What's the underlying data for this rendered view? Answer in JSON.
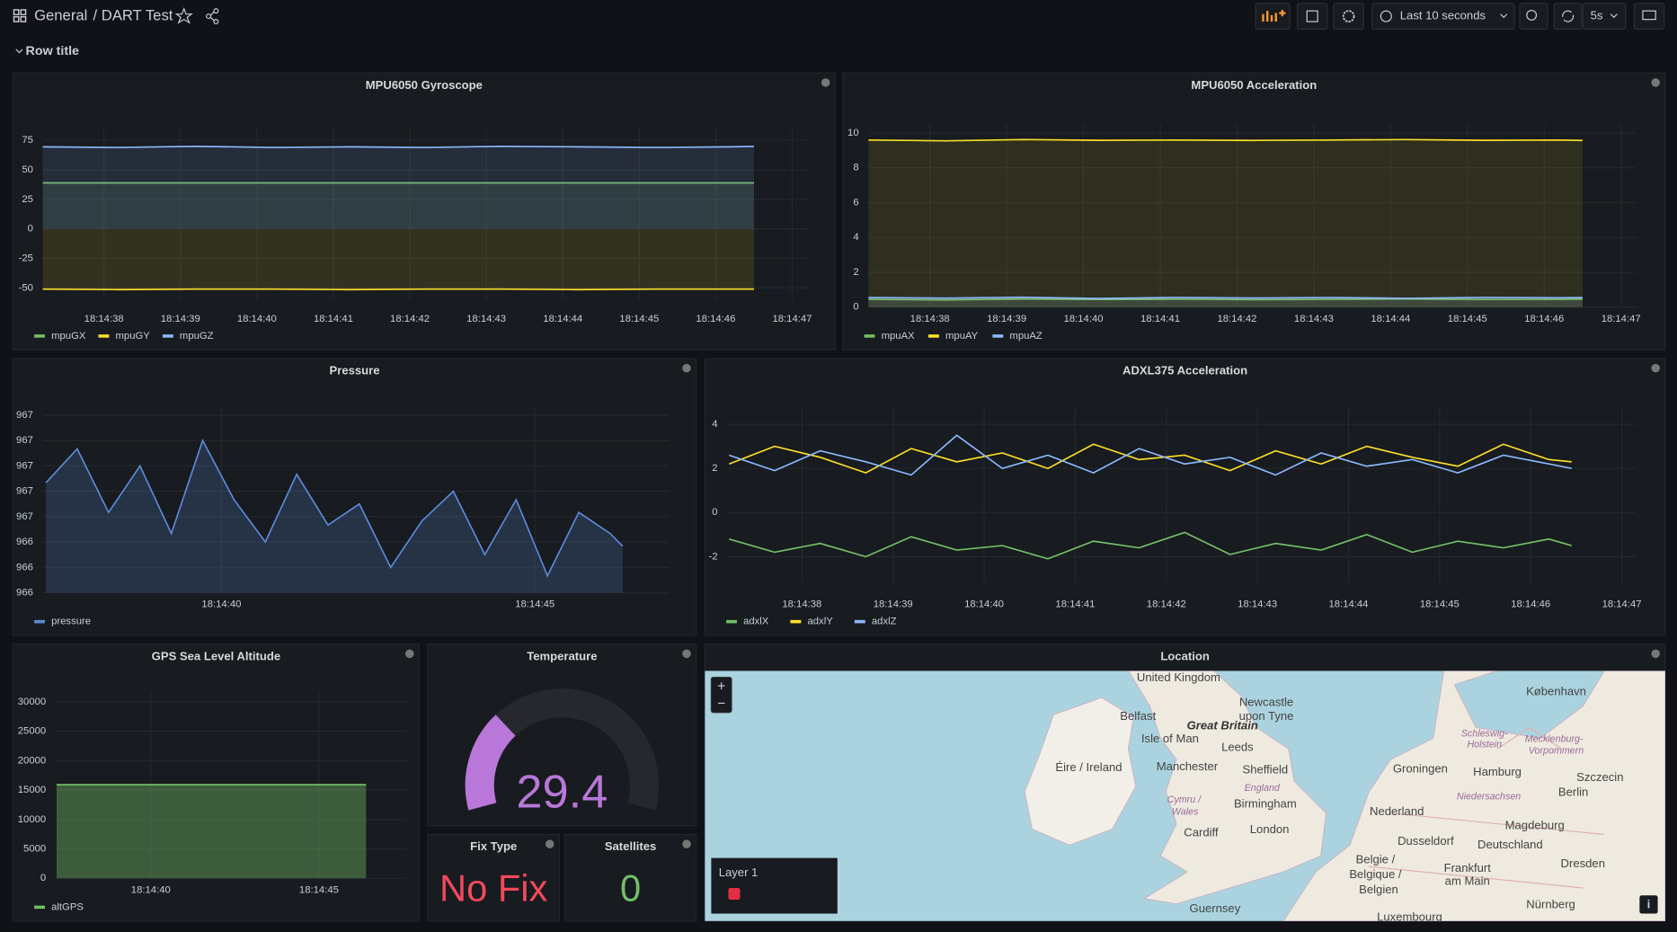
{
  "header": {
    "breadcrumb_folder": "General",
    "breadcrumb_title": "/ DART Test",
    "time_range": "Last 10 seconds",
    "refresh": "5s"
  },
  "row_title": "Row title",
  "chart_data": [
    {
      "type": "line",
      "title": "MPU6050 Gyroscope",
      "x": [
        "18:14:37.2",
        "18:14:38.2",
        "18:14:39.2",
        "18:14:40.2",
        "18:14:41.2",
        "18:14:42.2",
        "18:14:43.2",
        "18:14:44.2",
        "18:14:45.2",
        "18:14:46.2",
        "18:14:46.5"
      ],
      "xlim": [
        "18:14:37.2",
        "18:14:47.2"
      ],
      "xticks": [
        "18:14:38",
        "18:14:39",
        "18:14:40",
        "18:14:41",
        "18:14:42",
        "18:14:43",
        "18:14:44",
        "18:14:45",
        "18:14:46",
        "18:14:47"
      ],
      "ylim": [
        -60,
        85
      ],
      "yticks": [
        75,
        50,
        25,
        0,
        -25,
        -50
      ],
      "grid": true,
      "fill_opacity": 0.12,
      "series": [
        {
          "name": "mpuGX",
          "color": "#73bf69",
          "values": [
            39,
            39,
            39,
            39,
            39,
            39,
            39,
            39,
            39,
            39,
            39
          ]
        },
        {
          "name": "mpuGY",
          "color": "#fade2a",
          "values": [
            -51,
            -51.5,
            -51,
            -51,
            -51.5,
            -51,
            -51,
            -51.5,
            -51,
            -51,
            -51
          ]
        },
        {
          "name": "mpuGZ",
          "color": "#8ab8ff",
          "values": [
            69.5,
            69,
            70,
            69,
            69.5,
            69,
            70,
            69.5,
            69,
            69.5,
            70
          ]
        }
      ]
    },
    {
      "type": "line",
      "title": "MPU6050 Acceleration",
      "x": [
        "18:14:37.2",
        "18:14:38.2",
        "18:14:39.2",
        "18:14:40.2",
        "18:14:41.2",
        "18:14:42.2",
        "18:14:43.2",
        "18:14:44.2",
        "18:14:45.2",
        "18:14:46.2",
        "18:14:46.5"
      ],
      "xlim": [
        "18:14:37.2",
        "18:14:47.2"
      ],
      "xticks": [
        "18:14:38",
        "18:14:39",
        "18:14:40",
        "18:14:41",
        "18:14:42",
        "18:14:43",
        "18:14:44",
        "18:14:45",
        "18:14:46",
        "18:14:47"
      ],
      "ylim": [
        0,
        10.5
      ],
      "yticks": [
        10,
        8,
        6,
        4,
        2,
        0
      ],
      "grid": true,
      "fill_opacity": 0.1,
      "series": [
        {
          "name": "mpuAX",
          "color": "#73bf69",
          "values": [
            0.45,
            0.42,
            0.47,
            0.44,
            0.46,
            0.43,
            0.45,
            0.47,
            0.44,
            0.45,
            0.46
          ]
        },
        {
          "name": "mpuAY",
          "color": "#fade2a",
          "values": [
            9.6,
            9.55,
            9.62,
            9.58,
            9.6,
            9.57,
            9.6,
            9.62,
            9.58,
            9.6,
            9.57
          ]
        },
        {
          "name": "mpuAZ",
          "color": "#8ab8ff",
          "values": [
            0.55,
            0.52,
            0.57,
            0.5,
            0.56,
            0.53,
            0.55,
            0.51,
            0.56,
            0.54,
            0.55
          ]
        }
      ]
    },
    {
      "type": "line",
      "title": "Pressure",
      "x": [
        "18:14:37.2",
        "18:14:37.7",
        "18:14:38.2",
        "18:14:38.7",
        "18:14:39.2",
        "18:14:39.7",
        "18:14:40.2",
        "18:14:40.7",
        "18:14:41.2",
        "18:14:41.7",
        "18:14:42.2",
        "18:14:42.7",
        "18:14:43.2",
        "18:14:43.7",
        "18:14:44.2",
        "18:14:44.7",
        "18:14:45.2",
        "18:14:45.7",
        "18:14:46.2",
        "18:14:46.4"
      ],
      "xlim": [
        "18:14:37.15",
        "18:14:47.13"
      ],
      "xticks": [
        "18:14:40",
        "18:14:45"
      ],
      "ylim": [
        966.36,
        966.8
      ],
      "yticks": [
        {
          "value": 966.78,
          "label": "967"
        },
        {
          "value": 966.72,
          "label": "967"
        },
        {
          "value": 966.66,
          "label": "967"
        },
        {
          "value": 966.6,
          "label": "967"
        },
        {
          "value": 966.54,
          "label": "967"
        },
        {
          "value": 966.48,
          "label": "966"
        },
        {
          "value": 966.42,
          "label": "966"
        },
        {
          "value": 966.36,
          "label": "966"
        }
      ],
      "grid": true,
      "fill_opacity": 0.22,
      "series": [
        {
          "name": "pressure",
          "color": "#5b8ad8",
          "values": [
            966.62,
            966.7,
            966.55,
            966.66,
            966.5,
            966.72,
            966.58,
            966.48,
            966.64,
            966.52,
            966.57,
            966.42,
            966.53,
            966.6,
            966.45,
            966.58,
            966.4,
            966.55,
            966.5,
            966.47
          ]
        }
      ]
    },
    {
      "type": "line",
      "title": "ADXL375 Acceleration",
      "x": [
        "18:14:37.2",
        "18:14:37.7",
        "18:14:38.2",
        "18:14:38.7",
        "18:14:39.2",
        "18:14:39.7",
        "18:14:40.2",
        "18:14:40.7",
        "18:14:41.2",
        "18:14:41.7",
        "18:14:42.2",
        "18:14:42.7",
        "18:14:43.2",
        "18:14:43.7",
        "18:14:44.2",
        "18:14:44.7",
        "18:14:45.2",
        "18:14:45.7",
        "18:14:46.2",
        "18:14:46.45"
      ],
      "xlim": [
        "18:14:37.18",
        "18:14:47.16"
      ],
      "xticks": [
        "18:14:38",
        "18:14:39",
        "18:14:40",
        "18:14:41",
        "18:14:42",
        "18:14:43",
        "18:14:44",
        "18:14:45",
        "18:14:46",
        "18:14:47"
      ],
      "ylim": [
        -3.2,
        4.8
      ],
      "yticks": [
        4,
        2,
        0,
        -2
      ],
      "grid": true,
      "fill_opacity": 0,
      "series": [
        {
          "name": "adxlX",
          "color": "#73bf69",
          "values": [
            -1.2,
            -1.8,
            -1.4,
            -2.0,
            -1.1,
            -1.7,
            -1.5,
            -2.1,
            -1.3,
            -1.6,
            -0.9,
            -1.9,
            -1.4,
            -1.7,
            -1.0,
            -1.8,
            -1.3,
            -1.6,
            -1.2,
            -1.5
          ]
        },
        {
          "name": "adxlY",
          "color": "#fade2a",
          "values": [
            2.2,
            3.0,
            2.5,
            1.8,
            2.9,
            2.3,
            2.7,
            2.0,
            3.1,
            2.4,
            2.6,
            1.9,
            2.8,
            2.2,
            3.0,
            2.5,
            2.1,
            3.1,
            2.4,
            2.3
          ]
        },
        {
          "name": "adxlZ",
          "color": "#8ab8ff",
          "values": [
            2.6,
            1.9,
            2.8,
            2.3,
            1.7,
            3.5,
            2.0,
            2.6,
            1.8,
            2.9,
            2.2,
            2.5,
            1.7,
            2.7,
            2.1,
            2.4,
            1.8,
            2.6,
            2.2,
            2.0
          ]
        }
      ]
    },
    {
      "type": "line",
      "title": "GPS Sea Level Altitude",
      "x": [
        "18:14:37.2",
        "18:14:46.4"
      ],
      "xlim": [
        "18:14:37.17",
        "18:14:47.6"
      ],
      "xticks": [
        "18:14:40",
        "18:14:45"
      ],
      "ylim": [
        0,
        32000
      ],
      "yticks": [
        30000,
        25000,
        20000,
        15000,
        10000,
        5000,
        0
      ],
      "grid": true,
      "fill_opacity": 0.4,
      "series": [
        {
          "name": "altGPS",
          "color": "#73bf69",
          "values": [
            15900,
            15900
          ]
        }
      ]
    },
    {
      "type": "gauge",
      "title": "Temperature",
      "value": 29.4,
      "min": 0,
      "max": 100,
      "color": "#b877d9"
    },
    {
      "type": "stat",
      "title": "Fix Type",
      "value": "No Fix",
      "color": "#f2495c"
    },
    {
      "type": "stat",
      "title": "Satellites",
      "value": 0,
      "color": "#73bf69"
    }
  ],
  "map": {
    "title": "Location",
    "zoom_in": "+",
    "zoom_out": "−",
    "layer": "Layer 1",
    "info": "i",
    "labels": [
      "United Kingdom",
      "Newcastle",
      "upon Tyne",
      "Belfast",
      "Great Britain",
      "Isle of Man",
      "Leeds",
      "Éire / Ireland",
      "Manchester",
      "Sheffield",
      "England",
      "Cymru /",
      "Wales",
      "Birmingham",
      "Cardiff",
      "London",
      "København",
      "Schleswig-",
      "Holstein",
      "Mecklenburg-",
      "Vorpommern",
      "Groningen",
      "Hamburg",
      "Szczecin",
      "Berlin",
      "Niedersachsen",
      "Nederland",
      "Magdeburg",
      "Dusseldorf",
      "Deutschland",
      "Belgie /",
      "Belgique /",
      "Belgien",
      "Frankfurt",
      "am Main",
      "Dresden",
      "Guernsey",
      "Luxembourg",
      "Nürnberg"
    ]
  }
}
